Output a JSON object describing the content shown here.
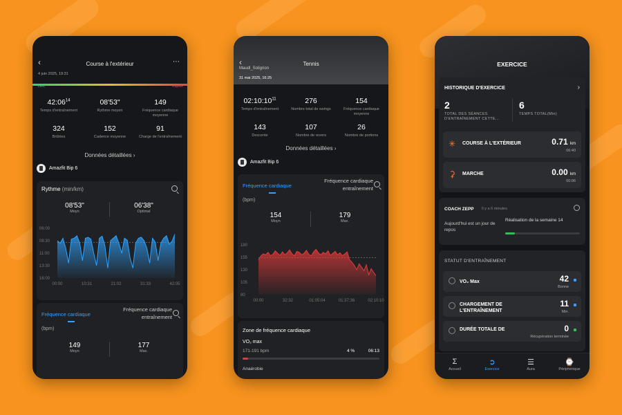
{
  "colors": {
    "background": "#f7931e",
    "accent": "#3aa0ff",
    "hr_red": "#e23a3a",
    "orange_icon": "#ff7a33"
  },
  "phone1": {
    "title": "Course à l'extérieur",
    "date": "4 juin 2025, 19:31",
    "lent": "Lent",
    "rapide": "Rapide",
    "stats": [
      {
        "value": "42:06",
        "sup": "14",
        "label": "Temps d'entraînement"
      },
      {
        "value": "08'53\"",
        "sup": "",
        "label": "Rythme moyen"
      },
      {
        "value": "149",
        "sup": "",
        "label": "Fréquence cardiaque moyenne"
      },
      {
        "value": "324",
        "sup": "",
        "label": "Brûlées"
      },
      {
        "value": "152",
        "sup": "",
        "label": "Cadence moyenne"
      },
      {
        "value": "91",
        "sup": "",
        "label": "Charge de l'entraînement"
      }
    ],
    "details_link": "Données détaillées",
    "device": "Amazfit Bip 6",
    "pace_title": "Rythme",
    "pace_unit": "(min/km)",
    "pace_avg": "08'53\"",
    "pace_avg_label": "Moyn",
    "pace_opt": "06'38\"",
    "pace_opt_label": "Optimal",
    "hr_tab": "Fréquence cardiaque",
    "hr_tab2": "Fréquence cardiaque entraînement",
    "bpm": "(bpm)",
    "hr_avg": "149",
    "hr_avg_label": "Moyn",
    "hr_max": "177",
    "hr_max_label": "Max."
  },
  "phone2": {
    "title": "Tennis",
    "location": "Maudl_Soligrion",
    "date": "31 mai 2025, 16:25",
    "stats": [
      {
        "value": "02:10:10",
        "sup": "11",
        "label": "Temps d'entraînement"
      },
      {
        "value": "276",
        "sup": "",
        "label": "Nombre total de swings"
      },
      {
        "value": "154",
        "sup": "",
        "label": "Fréquence cardiaque moyenne"
      },
      {
        "value": "143",
        "sup": "",
        "label": "Descente"
      },
      {
        "value": "107",
        "sup": "",
        "label": "Nombre de revers"
      },
      {
        "value": "26",
        "sup": "",
        "label": "Nombre de portions"
      }
    ],
    "details_link": "Données détaillées",
    "device": "Amazfit Bip 6",
    "hr_tab": "Fréquence cardiaque",
    "hr_tab2": "Fréquence cardiaque entraînement",
    "bpm": "(bpm)",
    "hr_avg": "154",
    "hr_avg_label": "Moyn",
    "hr_max": "179",
    "hr_max_label": "Max.",
    "zone_title": "Zone de fréquence cardiaque",
    "zone_name": "VO₂ max",
    "zone_range": "171-191 bpm",
    "zone_pct": "4 %",
    "zone_time": "06:13",
    "zone_next": "Anaérobie"
  },
  "phone3": {
    "title": "EXERCICE",
    "history_title": "HISTORIQUE D'EXERCICE",
    "sessions_value": "2",
    "sessions_label": "TOTAL DES SÉANCES D'ENTRAÎNEMENT CETTE...",
    "time_value": "6",
    "time_label": "TEMPS TOTAL(Min)",
    "activities": [
      {
        "name": "COURSE À L'EXTÉRIEUR",
        "km": "0.71",
        "unit": "km",
        "time": "06:40"
      },
      {
        "name": "MARCHE",
        "km": "0.00",
        "unit": "km",
        "time": "00:06"
      }
    ],
    "coach_title": "COACH ZEPP",
    "coach_ago": "Il y a 6 minutes",
    "coach_msg": "Aujourd'hui est un jour de repos",
    "coach_week": "Réalisation de la semaine 14",
    "status_title": "STATUT D'ENTRAÎNEMENT",
    "status": [
      {
        "name": "VO₂ Max",
        "value": "42",
        "sub": "Bonne"
      },
      {
        "name": "CHARGEMENT DE L'ENTRAÎNEMENT",
        "value": "11",
        "sub": "Min."
      },
      {
        "name": "DURÉE TOTALE DE",
        "value": "0",
        "sub": "Récupération terminée"
      }
    ],
    "nav": [
      "Accueil",
      "Exercice",
      "Aura",
      "Périphérique"
    ]
  },
  "chart_data": [
    {
      "type": "area",
      "title": "Rythme",
      "ylabel": "(min/km)",
      "x_ticks": [
        "00:00",
        "10:31",
        "21:02",
        "31:33",
        "42:05"
      ],
      "y_ticks": [
        "06:00",
        "08:30",
        "11:00",
        "13:30",
        "16:00"
      ],
      "y_reference": "08:53",
      "series": [
        {
          "values": [
            8.5,
            9,
            8,
            10,
            13,
            8.2,
            8,
            7.5,
            9,
            12.5,
            8,
            7.8,
            8.2,
            11,
            13.5,
            8,
            7.6,
            9.5,
            14,
            8.5,
            8,
            7.5,
            9,
            11,
            8,
            8.4,
            12,
            14,
            9,
            8,
            7.8,
            8.5,
            10,
            13,
            8,
            8.8,
            12.5,
            9,
            8,
            7.5,
            9.2,
            8.6,
            7.2
          ]
        }
      ]
    },
    {
      "type": "area",
      "ylabel": "(bpm)",
      "x_ticks": [
        "00:00",
        "32:32",
        "01:05:04",
        "01:37:36",
        "02:10:10"
      ],
      "y_ticks": [
        "180",
        "155",
        "130",
        "105",
        "80"
      ],
      "y_reference": "154",
      "series": [
        {
          "values": [
            150,
            158,
            162,
            160,
            165,
            158,
            161,
            168,
            163,
            159,
            166,
            160,
            164,
            170,
            162,
            158,
            167,
            165,
            160,
            163,
            169,
            161,
            158,
            166,
            171,
            164,
            160,
            165,
            162,
            168,
            159,
            163,
            167,
            160,
            164,
            158,
            162,
            166,
            150,
            145,
            138,
            130,
            142,
            135,
            128,
            140,
            120,
            132,
            125,
            118
          ]
        }
      ]
    }
  ]
}
